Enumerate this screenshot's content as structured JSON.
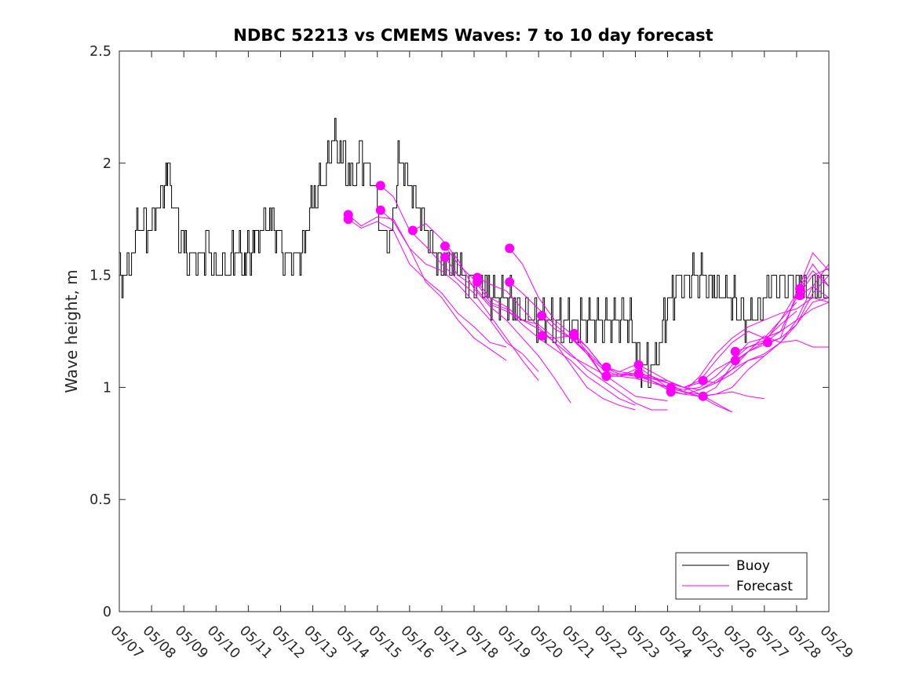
{
  "chart_data": {
    "type": "line",
    "title": "NDBC 52213 vs CMEMS Waves: 7 to 10 day forecast",
    "ylabel": "Wave height, m",
    "xlabel": "",
    "xlim": [
      "05/07",
      "05/29"
    ],
    "ylim": [
      0,
      2.5
    ],
    "yticks": [
      "0",
      "0.5",
      "1",
      "1.5",
      "2",
      "2.5"
    ],
    "xticks": [
      "05/07",
      "05/08",
      "05/09",
      "05/10",
      "05/11",
      "05/12",
      "05/13",
      "05/14",
      "05/15",
      "05/16",
      "05/17",
      "05/18",
      "05/19",
      "05/20",
      "05/21",
      "05/22",
      "05/23",
      "05/24",
      "05/25",
      "05/26",
      "05/27",
      "05/28",
      "05/29"
    ],
    "grid": false,
    "legend": {
      "placement": "bottom-right",
      "entries": [
        "Buoy",
        "Forecast"
      ]
    },
    "colors": {
      "buoy": "#000000",
      "forecast": "#ff00ff"
    },
    "buoy_noise": 0.1,
    "series": [
      {
        "name": "Buoy",
        "x": [
          0,
          0.3,
          0.6,
          0.9,
          1.2,
          1.5,
          1.8,
          2.1,
          2.4,
          2.7,
          3.0,
          3.3,
          3.6,
          3.9,
          4.2,
          4.5,
          4.8,
          5.1,
          5.4,
          5.7,
          6.0,
          6.3,
          6.6,
          6.9,
          7.2,
          7.5,
          7.8,
          8.1,
          8.4,
          8.7,
          9.0,
          9.3,
          9.6,
          9.9,
          10.2,
          10.5,
          10.8,
          11.1,
          11.4,
          11.7,
          12.0,
          12.3,
          12.6,
          12.9,
          13.2,
          13.5,
          13.8,
          14.1,
          14.4,
          14.7,
          15.0,
          15.3,
          15.6,
          15.9,
          16.2,
          16.5,
          16.8,
          17.1,
          17.4,
          17.7,
          18.0,
          18.3,
          18.6,
          18.9,
          19.2,
          19.5,
          19.8,
          20.1,
          20.4,
          20.7,
          21.0,
          21.3,
          21.6,
          21.9,
          22.0
        ],
        "y": [
          1.5,
          1.5,
          1.75,
          1.7,
          1.8,
          1.95,
          1.7,
          1.6,
          1.55,
          1.65,
          1.5,
          1.55,
          1.6,
          1.55,
          1.65,
          1.75,
          1.75,
          1.6,
          1.55,
          1.6,
          1.85,
          1.9,
          2.1,
          2.05,
          1.9,
          2.05,
          1.95,
          1.7,
          1.65,
          2.05,
          1.9,
          1.8,
          1.65,
          1.55,
          1.55,
          1.55,
          1.45,
          1.5,
          1.45,
          1.4,
          1.4,
          1.35,
          1.3,
          1.3,
          1.3,
          1.28,
          1.3,
          1.3,
          1.3,
          1.3,
          1.3,
          1.3,
          1.3,
          1.25,
          1.1,
          1.05,
          1.25,
          1.4,
          1.45,
          1.5,
          1.5,
          1.45,
          1.45,
          1.4,
          1.35,
          1.3,
          1.35,
          1.45,
          1.45,
          1.45,
          1.45,
          1.4,
          1.45,
          1.45,
          1.45
        ]
      },
      {
        "name": "Forecast",
        "x": [
          7.1,
          7.5,
          8.0,
          8.5,
          9.0,
          9.5,
          10.0,
          10.5,
          11.0,
          11.5,
          12.0
        ],
        "y": [
          1.77,
          1.72,
          1.76,
          1.75,
          1.62,
          1.47,
          1.4,
          1.3,
          1.22,
          1.17,
          1.12
        ]
      },
      {
        "name": "Forecast",
        "x": [
          7.1,
          7.5,
          8.0,
          8.5,
          9.0,
          9.5,
          10.0,
          10.5,
          11.0,
          11.5,
          12.0
        ],
        "y": [
          1.75,
          1.71,
          1.74,
          1.7,
          1.55,
          1.48,
          1.42,
          1.33,
          1.27,
          1.2,
          1.18
        ]
      },
      {
        "name": "Forecast",
        "x": [
          8.1,
          8.5,
          9.0,
          9.5,
          10.0,
          10.5,
          11.0,
          11.5,
          12.0,
          12.5,
          13.0
        ],
        "y": [
          1.9,
          1.85,
          1.7,
          1.63,
          1.55,
          1.48,
          1.42,
          1.32,
          1.22,
          1.12,
          1.03
        ]
      },
      {
        "name": "Forecast",
        "x": [
          8.1,
          8.5,
          9.0,
          9.5,
          10.0,
          10.5,
          11.0,
          11.5,
          12.0,
          12.5,
          13.0
        ],
        "y": [
          1.79,
          1.74,
          1.62,
          1.55,
          1.52,
          1.46,
          1.38,
          1.3,
          1.2,
          1.15,
          1.07
        ]
      },
      {
        "name": "Forecast",
        "x": [
          9.1,
          9.5,
          10.0,
          10.5,
          11.0,
          11.5,
          12.0,
          12.5,
          13.0,
          13.5,
          14.0
        ],
        "y": [
          1.7,
          1.73,
          1.66,
          1.57,
          1.44,
          1.36,
          1.3,
          1.22,
          1.14,
          1.04,
          0.93
        ]
      },
      {
        "name": "Forecast",
        "x": [
          10.1,
          10.5,
          11.0,
          11.5,
          12.0,
          12.5,
          13.0,
          13.5,
          14.0,
          14.5,
          15.0,
          15.5,
          16.0
        ],
        "y": [
          1.63,
          1.55,
          1.48,
          1.38,
          1.35,
          1.28,
          1.22,
          1.17,
          1.12,
          1.05,
          1.0,
          0.95,
          0.92
        ]
      },
      {
        "name": "Forecast",
        "x": [
          10.1,
          10.5,
          11.0,
          11.5,
          12.0,
          12.5,
          13.0,
          13.5,
          14.0,
          14.5,
          15.0,
          15.5,
          16.0
        ],
        "y": [
          1.58,
          1.5,
          1.45,
          1.37,
          1.34,
          1.3,
          1.26,
          1.2,
          1.1,
          1.0,
          0.95,
          0.92,
          0.9
        ]
      },
      {
        "name": "Forecast",
        "x": [
          11.1,
          11.5,
          12.0,
          12.5,
          13.0,
          13.5,
          14.0,
          14.5,
          15.0,
          15.5,
          16.0,
          16.5,
          17.0
        ],
        "y": [
          1.49,
          1.46,
          1.43,
          1.35,
          1.27,
          1.2,
          1.14,
          1.1,
          1.06,
          1.01,
          0.96,
          0.95,
          0.94
        ]
      },
      {
        "name": "Forecast",
        "x": [
          11.1,
          11.5,
          12.0,
          12.5,
          13.0,
          13.5,
          14.0,
          14.5,
          15.0,
          15.5,
          16.0,
          16.5,
          17.0
        ],
        "y": [
          1.47,
          1.4,
          1.36,
          1.3,
          1.28,
          1.22,
          1.15,
          1.08,
          1.03,
          0.98,
          0.93,
          0.9,
          0.9
        ]
      },
      {
        "name": "Forecast",
        "x": [
          12.1,
          12.5,
          13.0,
          13.5,
          14.0,
          14.5,
          15.0,
          15.5,
          16.0,
          16.5,
          17.0,
          17.5,
          18.0
        ],
        "y": [
          1.62,
          1.55,
          1.4,
          1.3,
          1.24,
          1.18,
          1.09,
          1.06,
          1.05,
          1.04,
          1.03,
          1.0,
          0.97
        ]
      },
      {
        "name": "Forecast",
        "x": [
          12.1,
          12.5,
          13.0,
          13.5,
          14.0,
          14.5,
          15.0,
          15.5,
          16.0,
          16.5,
          17.0,
          17.5,
          18.0
        ],
        "y": [
          1.47,
          1.42,
          1.35,
          1.28,
          1.22,
          1.15,
          1.08,
          1.05,
          1.04,
          1.02,
          1.0,
          0.98,
          0.96
        ]
      },
      {
        "name": "Forecast",
        "x": [
          13.1,
          13.5,
          14.0,
          14.5,
          15.0,
          15.5,
          16.0,
          16.5,
          17.0,
          17.5,
          18.0,
          18.5,
          19.0
        ],
        "y": [
          1.32,
          1.26,
          1.22,
          1.16,
          1.09,
          1.06,
          1.05,
          1.03,
          1.0,
          0.98,
          0.96,
          0.92,
          0.89
        ]
      },
      {
        "name": "Forecast",
        "x": [
          13.1,
          13.5,
          14.0,
          14.5,
          15.0,
          15.5,
          16.0,
          16.5,
          17.0,
          17.5,
          18.0,
          18.5,
          19.0
        ],
        "y": [
          1.23,
          1.22,
          1.23,
          1.15,
          1.05,
          1.05,
          1.06,
          1.05,
          1.02,
          0.98,
          0.97,
          0.93,
          0.89
        ]
      },
      {
        "name": "Forecast",
        "x": [
          14.1,
          14.5,
          15.0,
          15.5,
          16.0,
          16.5,
          17.0,
          17.5,
          18.0,
          18.5,
          19.0,
          19.5,
          20.0
        ],
        "y": [
          1.24,
          1.18,
          1.09,
          1.07,
          1.1,
          1.05,
          1.0,
          0.98,
          0.96,
          0.97,
          0.98,
          0.96,
          0.95
        ]
      },
      {
        "name": "Forecast",
        "x": [
          14.1,
          14.5,
          15.0,
          15.5,
          16.0,
          16.5,
          17.0,
          17.5,
          18.0,
          18.5,
          19.0,
          19.5,
          20.0
        ],
        "y": [
          1.23,
          1.16,
          1.05,
          1.06,
          1.06,
          1.04,
          1.02,
          1.0,
          0.99,
          1.02,
          1.08,
          1.12,
          1.14
        ]
      },
      {
        "name": "Forecast",
        "x": [
          15.1,
          15.5,
          16.0,
          16.5,
          17.0,
          17.5,
          18.0,
          18.5,
          19.0,
          19.5,
          20.0,
          20.5,
          21.0
        ],
        "y": [
          1.09,
          1.07,
          1.06,
          1.03,
          0.99,
          0.97,
          0.96,
          1.0,
          1.1,
          1.16,
          1.2,
          1.3,
          1.38
        ]
      },
      {
        "name": "Forecast",
        "x": [
          15.1,
          15.5,
          16.0,
          16.5,
          17.0,
          17.5,
          18.0,
          18.5,
          19.0,
          19.5,
          20.0,
          20.5,
          21.0
        ],
        "y": [
          1.05,
          1.05,
          1.08,
          1.04,
          1.02,
          1.0,
          1.02,
          1.08,
          1.12,
          1.18,
          1.21,
          1.28,
          1.34
        ]
      },
      {
        "name": "Forecast",
        "x": [
          16.1,
          16.5,
          17.0,
          17.5,
          18.0,
          18.5,
          19.0,
          19.5,
          20.0,
          20.5,
          21.0,
          21.5,
          22.0
        ],
        "y": [
          1.1,
          1.07,
          1.03,
          1.0,
          1.03,
          1.12,
          1.2,
          1.25,
          1.22,
          1.3,
          1.42,
          1.6,
          1.52
        ]
      },
      {
        "name": "Forecast",
        "x": [
          16.1,
          16.5,
          17.0,
          17.5,
          18.0,
          18.5,
          19.0,
          19.5,
          20.0,
          20.5,
          21.0,
          21.5,
          22.0
        ],
        "y": [
          1.06,
          1.05,
          1.02,
          0.98,
          1.05,
          1.15,
          1.22,
          1.27,
          1.3,
          1.33,
          1.35,
          1.4,
          1.38
        ]
      },
      {
        "name": "Forecast",
        "x": [
          17.1,
          17.5,
          18.0,
          18.5,
          19.0,
          19.5,
          20.0,
          20.5,
          21.0,
          21.5,
          22.0
        ],
        "y": [
          1.0,
          0.99,
          1.0,
          1.05,
          1.12,
          1.2,
          1.22,
          1.25,
          1.3,
          1.35,
          1.38
        ]
      },
      {
        "name": "Forecast",
        "x": [
          17.1,
          17.5,
          18.0,
          18.5,
          19.0,
          19.5,
          20.0,
          20.5,
          21.0,
          21.5,
          22.0
        ],
        "y": [
          0.98,
          0.97,
          0.99,
          1.03,
          1.08,
          1.16,
          1.23,
          1.2,
          1.21,
          1.18,
          1.18
        ]
      },
      {
        "name": "Forecast",
        "x": [
          18.1,
          18.5,
          19.0,
          19.5,
          20.0,
          20.5,
          21.0,
          21.5,
          22.0
        ],
        "y": [
          1.03,
          1.02,
          1.06,
          1.12,
          1.15,
          1.2,
          1.3,
          1.45,
          1.55
        ]
      },
      {
        "name": "Forecast",
        "x": [
          18.1,
          18.5,
          19.0,
          19.5,
          20.0,
          20.5,
          21.0,
          21.5,
          22.0
        ],
        "y": [
          0.96,
          0.97,
          1.0,
          1.08,
          1.14,
          1.2,
          1.28,
          1.38,
          1.4
        ]
      },
      {
        "name": "Forecast",
        "x": [
          19.1,
          19.5,
          20.0,
          20.5,
          21.0,
          21.5,
          22.0
        ],
        "y": [
          1.16,
          1.18,
          1.2,
          1.25,
          1.4,
          1.5,
          1.53
        ]
      },
      {
        "name": "Forecast",
        "x": [
          19.1,
          19.5,
          20.0,
          20.5,
          21.0,
          21.5,
          22.0
        ],
        "y": [
          1.12,
          1.16,
          1.19,
          1.22,
          1.42,
          1.55,
          1.45
        ]
      },
      {
        "name": "Forecast",
        "x": [
          20.1,
          20.5,
          21.0,
          21.5,
          22.0
        ],
        "y": [
          1.2,
          1.22,
          1.28,
          1.42,
          1.5
        ]
      },
      {
        "name": "Forecast",
        "x": [
          21.1,
          21.5,
          22.0
        ],
        "y": [
          1.44,
          1.52,
          1.45
        ]
      },
      {
        "name": "Forecast",
        "x": [
          21.1,
          21.5,
          22.0
        ],
        "y": [
          1.41,
          1.45,
          1.4
        ]
      }
    ],
    "forecast_start_markers": {
      "x": [
        7.1,
        7.1,
        8.1,
        8.1,
        9.1,
        10.1,
        10.1,
        11.1,
        11.1,
        12.1,
        12.1,
        13.1,
        13.1,
        14.1,
        14.1,
        15.1,
        15.1,
        16.1,
        16.1,
        17.1,
        17.1,
        18.1,
        18.1,
        19.1,
        19.1,
        20.1,
        21.1,
        21.1
      ],
      "y": [
        1.77,
        1.75,
        1.9,
        1.79,
        1.7,
        1.63,
        1.58,
        1.49,
        1.47,
        1.62,
        1.47,
        1.32,
        1.23,
        1.24,
        1.23,
        1.09,
        1.05,
        1.1,
        1.06,
        1.0,
        0.98,
        1.03,
        0.96,
        1.16,
        1.12,
        1.2,
        1.44,
        1.41
      ]
    }
  }
}
